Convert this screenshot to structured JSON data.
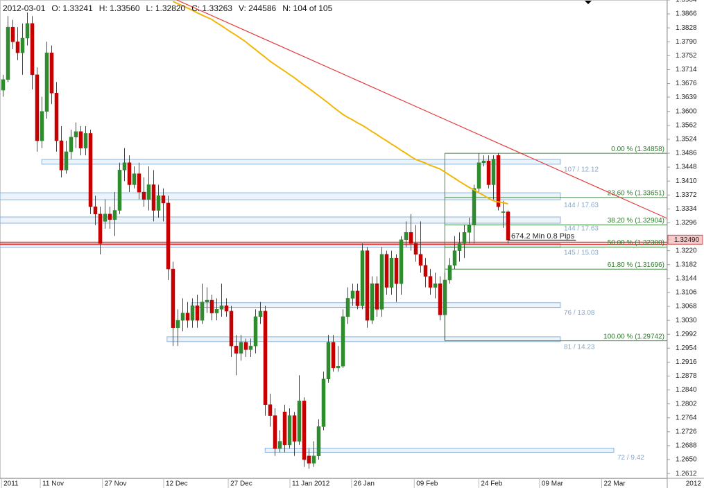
{
  "chart_data": {
    "type": "candlestick",
    "header": [
      "2012-03-01",
      "O: 1.33241",
      "H: 1.33560",
      "L: 1.32820",
      "C: 1.33263",
      "V: 244586",
      "N: 104 of 105"
    ],
    "xlim": [
      -0.6,
      136.8
    ],
    "xticks": [
      {
        "value": -0.3,
        "label": "2011"
      },
      {
        "value": 7.7,
        "label": "11 Nov"
      },
      {
        "value": 20.5,
        "label": "27 Nov"
      },
      {
        "value": 33.1,
        "label": "12 Dec"
      },
      {
        "value": 46.4,
        "label": "27 Dec"
      },
      {
        "value": 59.1,
        "label": "11 Jan 2012"
      },
      {
        "value": 71.8,
        "label": "26 Jan"
      },
      {
        "value": 84.7,
        "label": "09 Feb"
      },
      {
        "value": 98.0,
        "label": "24 Feb"
      },
      {
        "value": 110.5,
        "label": "09 Mar"
      },
      {
        "value": 123.3,
        "label": "22 Mar"
      }
    ],
    "axis_corner_label": "2012",
    "ylim": [
      1.2599,
      1.3904
    ],
    "yticks": [
      1.3904,
      1.3866,
      1.3828,
      {
        "value": 1.379,
        "label": "1.3790"
      },
      1.3752,
      1.3714,
      1.3676,
      1.3639,
      {
        "value": 1.36,
        "label": "1.3600"
      },
      1.3562,
      1.3524,
      1.3486,
      1.3448,
      {
        "value": 1.341,
        "label": "1.3410"
      },
      1.3372,
      1.3334,
      1.3296,
      {
        "value": 1.322,
        "label": "1.3220"
      },
      1.3182,
      1.3144,
      1.3106,
      1.3068,
      {
        "value": 1.303,
        "label": "1.3030"
      },
      1.2992,
      1.2954,
      1.2916,
      1.2878,
      {
        "value": 1.284,
        "label": "1.2840"
      },
      1.2802,
      1.2764,
      1.2726,
      1.2688,
      {
        "value": 1.265,
        "label": "1.2650"
      },
      1.2612
    ],
    "up_color": "#2e8b2e",
    "down_color": "#c40000",
    "candles": {
      "open": [
        1.3658,
        1.3687,
        1.383,
        1.379,
        1.376,
        1.38,
        1.384,
        1.37,
        1.352,
        1.36,
        1.376,
        1.365,
        1.352,
        1.344,
        1.349,
        1.353,
        1.3545,
        1.35,
        1.354,
        1.334,
        1.332,
        1.33,
        1.332,
        1.3305,
        1.333,
        1.344,
        1.346,
        1.34,
        1.343,
        1.338,
        1.336,
        1.34,
        1.333,
        1.337,
        1.335,
        1.317,
        1.301,
        1.303,
        1.305,
        1.303,
        1.307,
        1.303,
        1.308,
        1.3085,
        1.305,
        1.306,
        1.307,
        1.3055,
        1.296,
        1.294,
        1.297,
        1.295,
        1.296,
        1.304,
        1.3055,
        1.28,
        1.277,
        1.268,
        1.278,
        1.269,
        1.277,
        1.27,
        1.281,
        1.266,
        1.264,
        1.266,
        1.274,
        1.287,
        1.297,
        1.29,
        1.2905,
        1.304,
        1.309,
        1.311,
        1.307,
        1.322,
        1.303,
        1.313,
        1.306,
        1.321,
        1.312,
        1.32,
        1.313,
        1.325,
        1.327,
        1.324,
        1.321,
        1.318,
        1.315,
        1.312,
        1.313,
        1.3045,
        1.314,
        1.318,
        1.322,
        1.324,
        1.327,
        1.329,
        1.339,
        1.346,
        1.3465,
        1.34,
        1.348,
        1.33241,
        1.3326
      ],
      "high": [
        1.37,
        1.386,
        1.385,
        1.383,
        1.384,
        1.387,
        1.386,
        1.372,
        1.364,
        1.379,
        1.378,
        1.368,
        1.356,
        1.352,
        1.355,
        1.357,
        1.356,
        1.356,
        1.355,
        1.337,
        1.334,
        1.336,
        1.334,
        1.338,
        1.346,
        1.35,
        1.348,
        1.345,
        1.346,
        1.342,
        1.345,
        1.344,
        1.34,
        1.339,
        1.337,
        1.319,
        1.306,
        1.309,
        1.308,
        1.309,
        1.31,
        1.313,
        1.312,
        1.31,
        1.309,
        1.313,
        1.309,
        1.307,
        1.299,
        1.299,
        1.298,
        1.298,
        1.306,
        1.308,
        1.307,
        1.283,
        1.279,
        1.273,
        1.28,
        1.279,
        1.278,
        1.288,
        1.282,
        1.268,
        1.27,
        1.276,
        1.289,
        1.299,
        1.299,
        1.296,
        1.306,
        1.312,
        1.313,
        1.313,
        1.324,
        1.323,
        1.315,
        1.315,
        1.323,
        1.322,
        1.322,
        1.321,
        1.326,
        1.33,
        1.332,
        1.329,
        1.33,
        1.32,
        1.317,
        1.316,
        1.315,
        1.316,
        1.32,
        1.326,
        1.327,
        1.329,
        1.331,
        1.34,
        1.3486,
        1.348,
        1.348,
        1.348,
        1.3486,
        1.3356,
        1.333
      ],
      "low": [
        1.364,
        1.368,
        1.377,
        1.374,
        1.37,
        1.378,
        1.366,
        1.349,
        1.35,
        1.358,
        1.362,
        1.349,
        1.342,
        1.343,
        1.347,
        1.35,
        1.348,
        1.348,
        1.332,
        1.329,
        1.321,
        1.328,
        1.328,
        1.326,
        1.332,
        1.341,
        1.338,
        1.339,
        1.336,
        1.334,
        1.333,
        1.33,
        1.331,
        1.33,
        1.314,
        1.296,
        1.296,
        1.3,
        1.301,
        1.301,
        1.301,
        1.302,
        1.305,
        1.303,
        1.303,
        1.304,
        1.304,
        1.293,
        1.288,
        1.292,
        1.293,
        1.293,
        1.294,
        1.302,
        1.277,
        1.274,
        1.266,
        1.267,
        1.267,
        1.268,
        1.266,
        1.269,
        1.263,
        1.2625,
        1.263,
        1.265,
        1.273,
        1.286,
        1.289,
        1.289,
        1.29,
        1.302,
        1.307,
        1.306,
        1.306,
        1.301,
        1.302,
        1.304,
        1.304,
        1.31,
        1.31,
        1.308,
        1.31,
        1.323,
        1.322,
        1.319,
        1.316,
        1.312,
        1.31,
        1.309,
        1.303,
        1.2975,
        1.313,
        1.317,
        1.319,
        1.32,
        1.324,
        1.324,
        1.338,
        1.345,
        1.339,
        1.336,
        1.333,
        1.3282,
        1.324
      ],
      "close": [
        1.3687,
        1.383,
        1.379,
        1.376,
        1.38,
        1.384,
        1.37,
        1.352,
        1.36,
        1.376,
        1.365,
        1.352,
        1.344,
        1.349,
        1.353,
        1.3545,
        1.35,
        1.354,
        1.334,
        1.332,
        1.324,
        1.332,
        1.3305,
        1.333,
        1.344,
        1.346,
        1.34,
        1.343,
        1.338,
        1.336,
        1.34,
        1.333,
        1.337,
        1.335,
        1.317,
        1.301,
        1.303,
        1.305,
        1.303,
        1.307,
        1.303,
        1.308,
        1.3085,
        1.305,
        1.306,
        1.307,
        1.3055,
        1.296,
        1.294,
        1.297,
        1.295,
        1.296,
        1.304,
        1.3055,
        1.28,
        1.277,
        1.268,
        1.27,
        1.269,
        1.277,
        1.27,
        1.281,
        1.265,
        1.264,
        1.266,
        1.274,
        1.287,
        1.297,
        1.29,
        1.2905,
        1.304,
        1.309,
        1.311,
        1.307,
        1.322,
        1.303,
        1.313,
        1.306,
        1.321,
        1.312,
        1.32,
        1.313,
        1.325,
        1.327,
        1.324,
        1.321,
        1.318,
        1.315,
        1.312,
        1.313,
        1.3045,
        1.314,
        1.318,
        1.322,
        1.324,
        1.327,
        1.329,
        1.339,
        1.346,
        1.3465,
        1.34,
        1.347,
        1.334,
        1.33263,
        1.3249
      ]
    },
    "moving_average": {
      "color": "#f2b705",
      "values": [
        null,
        null,
        null,
        null,
        null,
        null,
        null,
        null,
        null,
        null,
        null,
        null,
        null,
        null,
        null,
        null,
        null,
        null,
        null,
        null,
        null,
        null,
        null,
        null,
        null,
        null,
        null,
        null,
        null,
        null,
        null,
        null,
        null,
        null,
        null,
        1.39,
        1.3894,
        1.3888,
        1.3882,
        1.3876,
        1.3869,
        1.3863,
        1.3857,
        1.3851,
        1.3842,
        1.3834,
        1.3825,
        1.3816,
        1.3808,
        1.3799,
        1.379,
        1.3779,
        1.3769,
        1.3758,
        1.3748,
        1.3737,
        1.3728,
        1.3719,
        1.371,
        1.3701,
        1.3692,
        1.3682,
        1.3672,
        1.3663,
        1.3653,
        1.3643,
        1.3633,
        1.3623,
        1.3612,
        1.3602,
        1.3592,
        1.3584,
        1.3577,
        1.3569,
        1.3562,
        1.3554,
        1.3545,
        1.3537,
        1.3528,
        1.352,
        1.3511,
        1.3503,
        1.3494,
        1.3486,
        1.3477,
        1.3469,
        1.3464,
        1.3459,
        1.3453,
        1.3448,
        1.3443,
        1.3435,
        1.3426,
        1.3418,
        1.3409,
        1.3401,
        1.3393,
        1.3386,
        1.3378,
        1.3371,
        1.3363,
        1.3356,
        1.3353,
        1.3351,
        1.3348
      ]
    },
    "trendline": {
      "color": "#e43b3b",
      "x": [
        35.8,
        136.8
      ],
      "y": [
        1.3904,
        1.3308
      ]
    },
    "hlines": [
      {
        "value": 1.3243,
        "color": "#e03a3a"
      },
      {
        "value": 1.3237,
        "color": "#e03a3a"
      }
    ],
    "price_label": {
      "value": 1.3249,
      "label": "1.32490"
    },
    "measure": {
      "label": "674.2 Min 0.8 Pips",
      "x": [
        104.1,
        118.0
      ]
    },
    "fib": {
      "color": "#3d8a3d",
      "x_start": 91,
      "levels": [
        {
          "value": 1.34858,
          "label": "0.00 % (1.34858)"
        },
        {
          "value": 1.33651,
          "label": "23.60 % (1.33651)"
        },
        {
          "value": 1.32904,
          "label": "38.20 % (1.32904)"
        },
        {
          "value": 1.323,
          "label": "50.00 % (1.32300)"
        },
        {
          "value": 1.31696,
          "label": "61.80 % (1.31696)"
        },
        {
          "value": 1.29742,
          "label": "100.00 % (1.29742)"
        }
      ]
    },
    "zones": [
      {
        "x": [
          8.0,
          114.8
        ],
        "y": [
          1.3456,
          1.3469
        ],
        "label": "107 / 12.12"
      },
      {
        "x": [
          -0.6,
          114.8
        ],
        "y": [
          1.3359,
          1.3378
        ],
        "label": "144 / 17.63"
      },
      {
        "x": [
          -0.6,
          114.8
        ],
        "y": [
          1.3295,
          1.3312
        ],
        "label": "144 / 17.63"
      },
      {
        "x": [
          -0.6,
          114.8
        ],
        "y": [
          1.3229,
          1.3239
        ],
        "label": "145 / 15.03"
      },
      {
        "x": [
          38.8,
          114.8
        ],
        "y": [
          1.3065,
          1.3078
        ],
        "label": "76 / 13.08"
      },
      {
        "x": [
          33.8,
          114.8
        ],
        "y": [
          1.2972,
          1.2985
        ],
        "label": "81 / 14.23"
      },
      {
        "x": [
          54.0,
          125.8
        ],
        "y": [
          1.267,
          1.2681
        ],
        "label": "72 / 9.42"
      }
    ]
  }
}
